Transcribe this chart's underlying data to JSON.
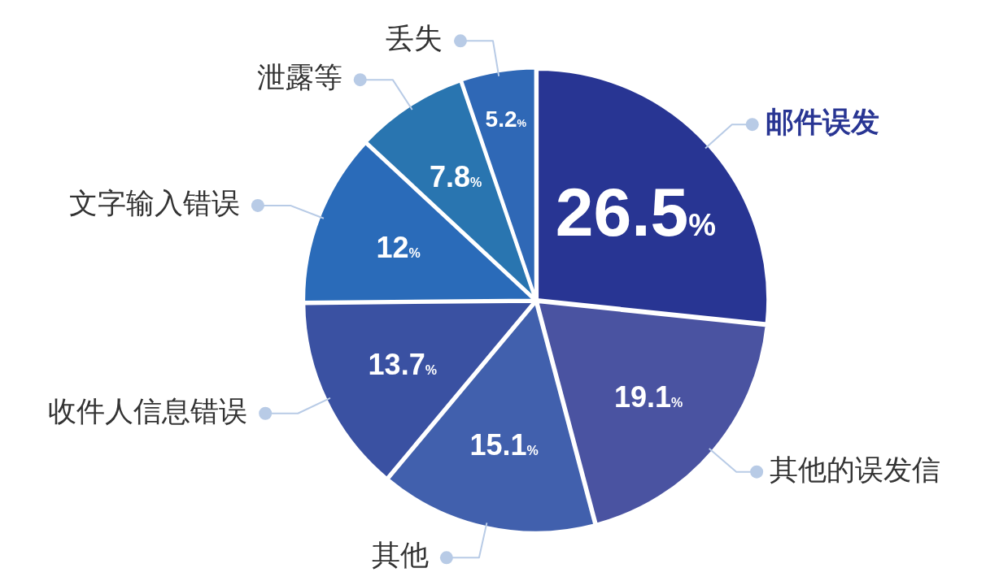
{
  "chart_data": {
    "type": "pie",
    "categories": [
      "邮件误发",
      "其他的误发信",
      "其他",
      "收件人信息错误",
      "文字输入错误",
      "泄露等",
      "丢失"
    ],
    "values": [
      26.5,
      19.1,
      15.1,
      13.7,
      12,
      7.8,
      5.2
    ],
    "colors": [
      "#283593",
      "#4a53a1",
      "#4160ad",
      "#3a51a2",
      "#2a6bb9",
      "#2975b0",
      "#2f68b6"
    ],
    "value_labels": [
      "26.5%",
      "19.1%",
      "15.1%",
      "13.7%",
      "12%",
      "7.8%",
      "5.2%"
    ],
    "legend": false
  }
}
